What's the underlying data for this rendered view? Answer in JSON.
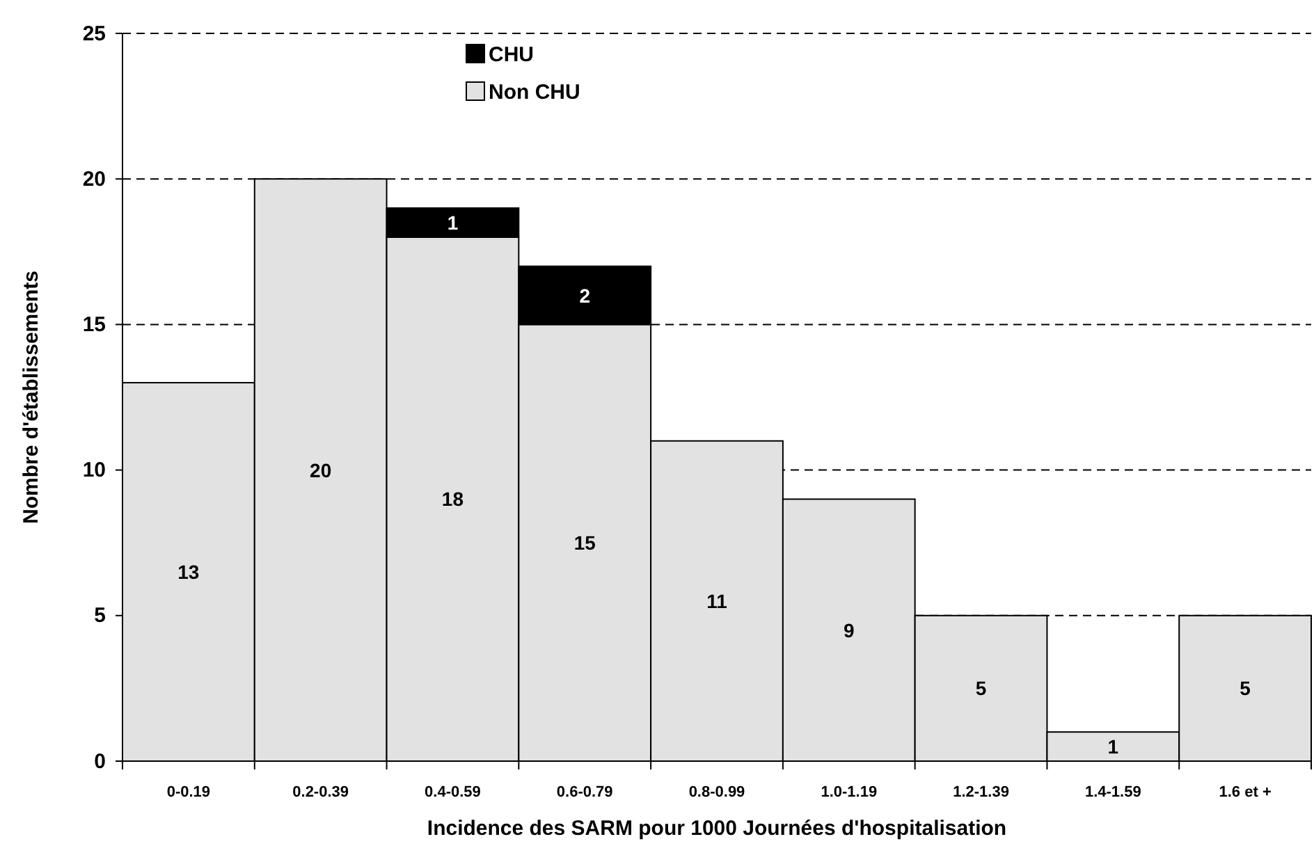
{
  "chart_data": {
    "type": "bar",
    "stacked": true,
    "xlabel": "Incidence des SARM pour 1000 Journées d'hospitalisation",
    "ylabel": "Nombre d'établissements",
    "categories": [
      "0-0.19",
      "0.2-0.39",
      "0.4-0.59",
      "0.6-0.79",
      "0.8-0.99",
      "1.0-1.19",
      "1.2-1.39",
      "1.4-1.59",
      "1.6 et +"
    ],
    "series": [
      {
        "name": "Non CHU",
        "color": "#e2e2e2",
        "values": [
          13,
          20,
          18,
          15,
          11,
          9,
          5,
          1,
          5
        ]
      },
      {
        "name": "CHU",
        "color": "#000000",
        "values": [
          null,
          null,
          1,
          2,
          null,
          null,
          null,
          null,
          null
        ]
      }
    ],
    "ylim": [
      0,
      25
    ],
    "yticks": [
      0,
      5,
      10,
      15,
      20,
      25
    ],
    "grid": "y",
    "legend": "top",
    "data_labels": true
  }
}
